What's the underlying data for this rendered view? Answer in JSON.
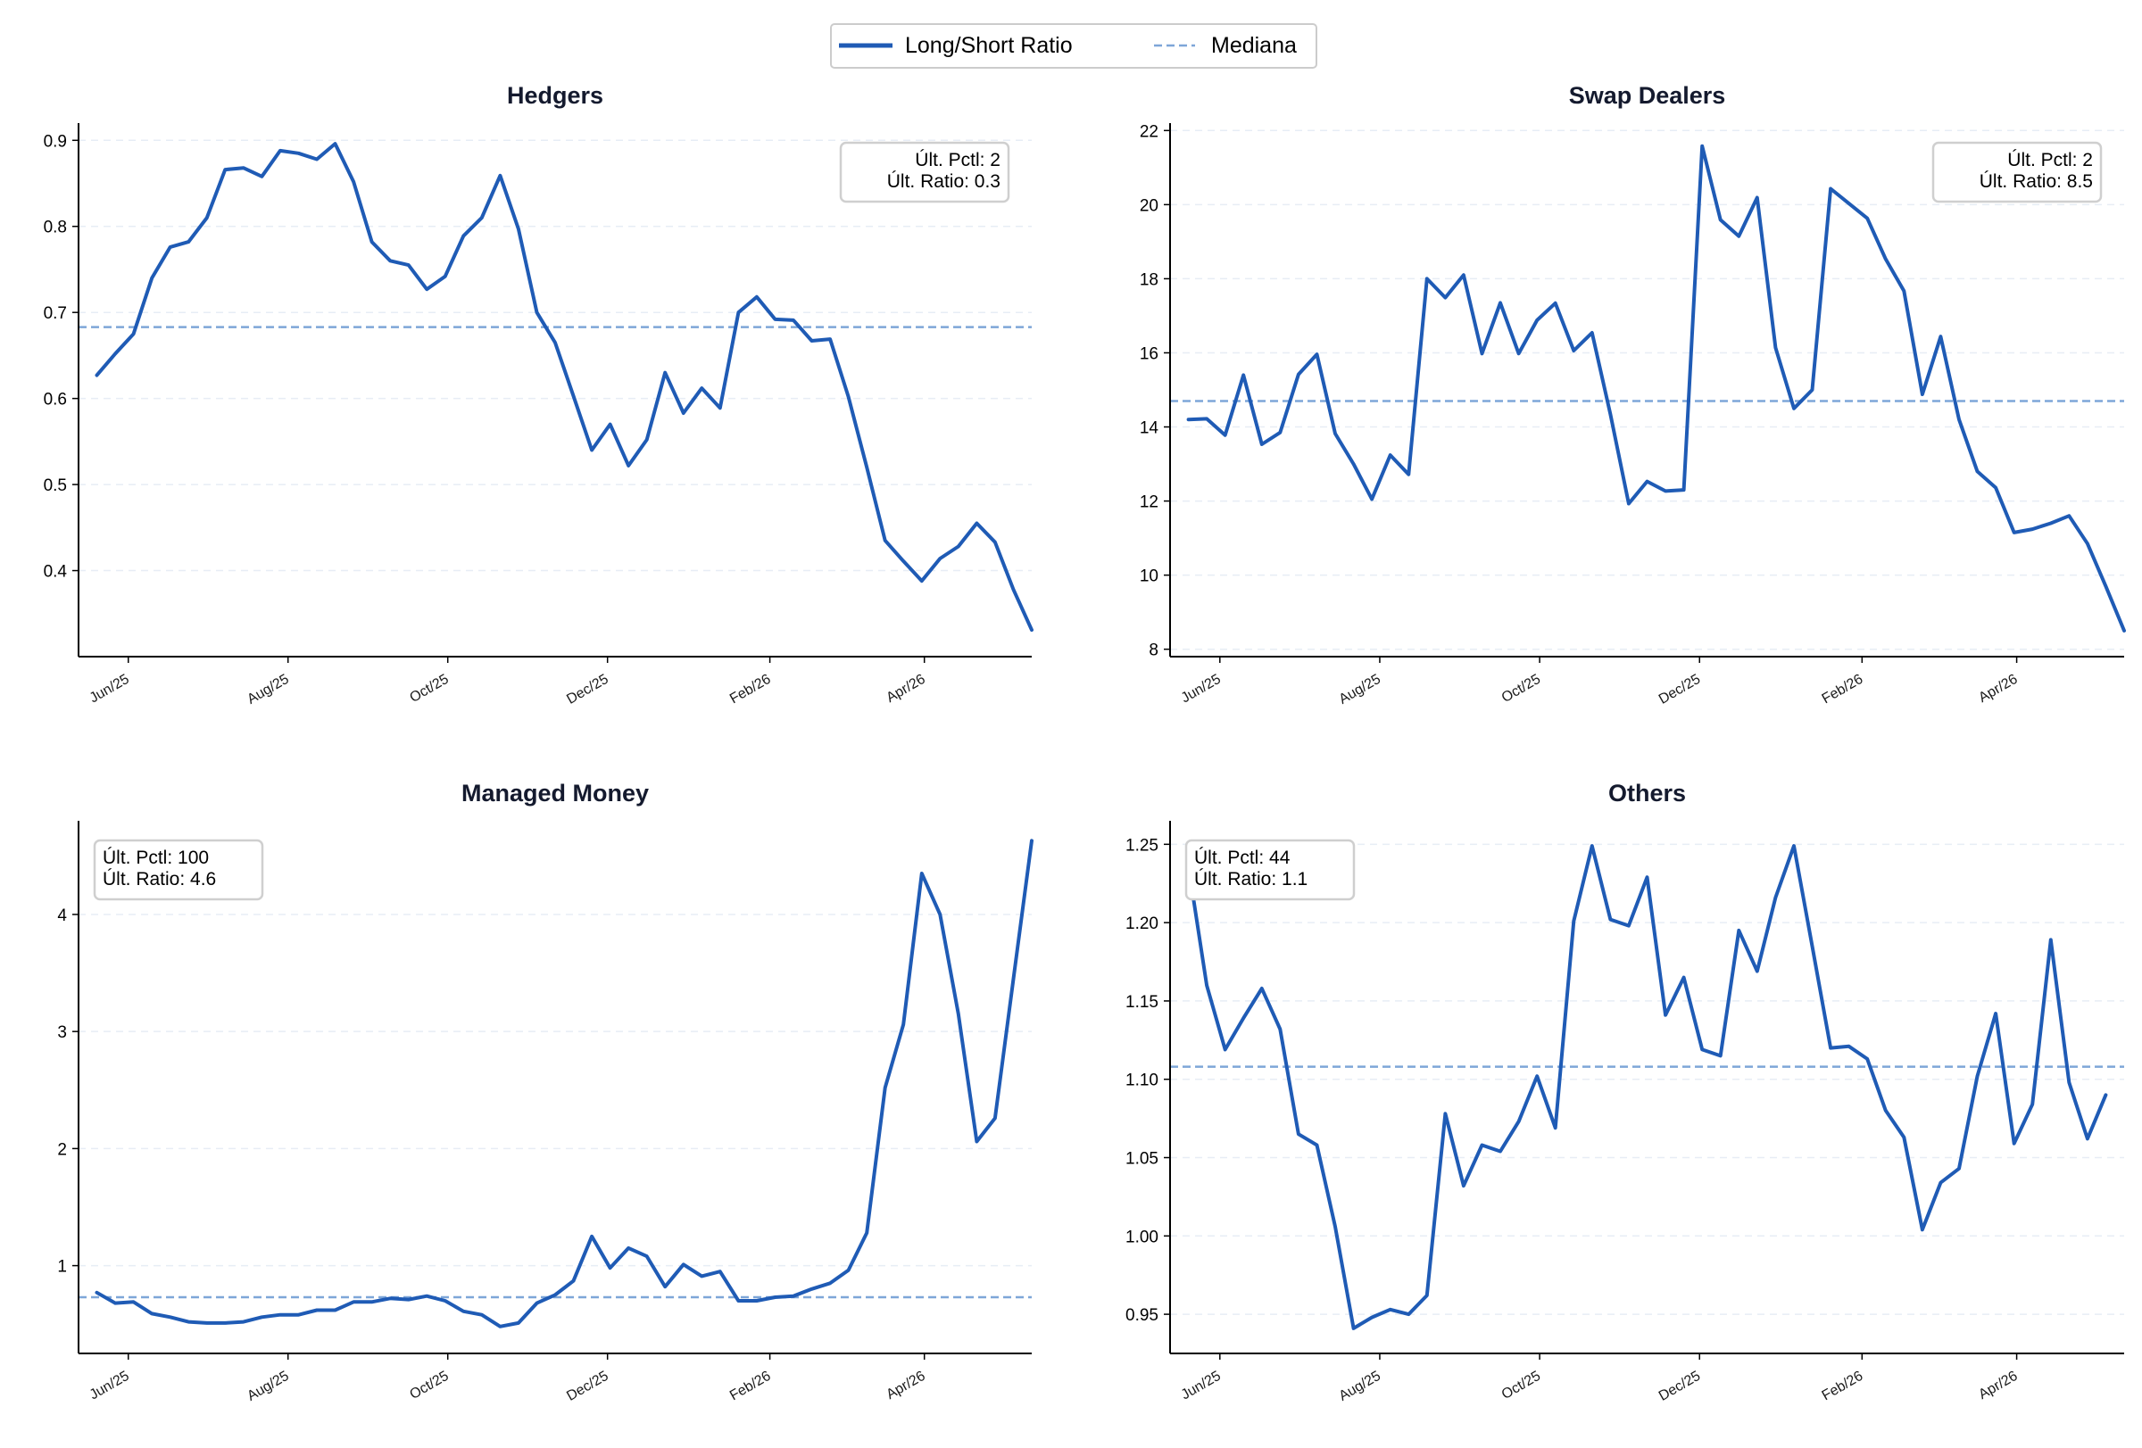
{
  "legend": {
    "ratio_label": "Long/Short Ratio",
    "median_label": "Mediana",
    "colors": {
      "ratio": "#1f5bb5",
      "median": "#7ea6d8"
    }
  },
  "x_ticks": [
    "Jun/25",
    "Aug/25",
    "Oct/25",
    "Dec/25",
    "Feb/26",
    "Apr/26"
  ],
  "chart_data": [
    {
      "type": "line",
      "title": "Hedgers",
      "x_start": "2025-05-20",
      "x_step_days": 7,
      "ylim": [
        0.3,
        0.92
      ],
      "yticks": [
        "0.4",
        "0.5",
        "0.6",
        "0.7",
        "0.8",
        "0.9"
      ],
      "median": 0.683,
      "annotation": {
        "lines": [
          "Últ. Pctl: 2",
          "Últ. Ratio: 0.3"
        ],
        "position": "top-right"
      },
      "series": [
        {
          "name": "Long/Short Ratio",
          "values": [
            0.627,
            0.652,
            0.675,
            0.74,
            0.776,
            0.782,
            0.81,
            0.866,
            0.868,
            0.858,
            0.888,
            0.885,
            0.878,
            0.896,
            0.852,
            0.782,
            0.76,
            0.755,
            0.727,
            0.742,
            0.789,
            0.81,
            0.859,
            0.797,
            0.7,
            0.665,
            0.603,
            0.54,
            0.57,
            0.522,
            0.552,
            0.63,
            0.583,
            0.612,
            0.589,
            0.7,
            0.718,
            0.692,
            0.691,
            0.667,
            0.669,
            0.602,
            0.52,
            0.435,
            0.411,
            0.388,
            0.414,
            0.428,
            0.455,
            0.433,
            0.378,
            0.331
          ]
        }
      ]
    },
    {
      "type": "line",
      "title": "Swap Dealers",
      "x_start": "2025-05-20",
      "x_step_days": 7,
      "ylim": [
        7.8,
        22.2
      ],
      "yticks": [
        "8",
        "10",
        "12",
        "14",
        "16",
        "18",
        "20",
        "22"
      ],
      "median": 14.7,
      "annotation": {
        "lines": [
          "Últ. Pctl: 2",
          "Últ. Ratio: 8.5"
        ],
        "position": "top-right"
      },
      "series": [
        {
          "name": "Long/Short Ratio",
          "values": [
            14.2,
            14.22,
            13.78,
            15.4,
            13.53,
            13.85,
            15.42,
            15.96,
            13.82,
            13.0,
            12.05,
            13.24,
            12.72,
            18.0,
            17.49,
            18.1,
            15.98,
            17.35,
            15.98,
            16.88,
            17.34,
            16.06,
            16.54,
            14.34,
            11.93,
            12.53,
            12.27,
            12.3,
            21.58,
            19.59,
            19.15,
            20.19,
            16.14,
            14.5,
            15.0,
            20.43,
            20.03,
            19.63,
            18.53,
            17.67,
            14.88,
            16.44,
            14.2,
            12.8,
            12.36,
            11.15,
            11.24,
            11.4,
            11.6,
            10.85,
            9.7,
            8.5
          ]
        }
      ]
    },
    {
      "type": "line",
      "title": "Managed Money",
      "x_start": "2025-05-20",
      "x_step_days": 7,
      "ylim": [
        0.25,
        4.8
      ],
      "yticks": [
        "1",
        "2",
        "3",
        "4"
      ],
      "median": 0.73,
      "annotation": {
        "lines": [
          "Últ. Pctl: 100",
          "Últ. Ratio: 4.6"
        ],
        "position": "top-left"
      },
      "series": [
        {
          "name": "Long/Short Ratio",
          "values": [
            0.77,
            0.68,
            0.69,
            0.59,
            0.56,
            0.52,
            0.51,
            0.51,
            0.52,
            0.56,
            0.58,
            0.58,
            0.62,
            0.62,
            0.69,
            0.69,
            0.72,
            0.71,
            0.74,
            0.7,
            0.61,
            0.58,
            0.48,
            0.51,
            0.68,
            0.75,
            0.87,
            1.25,
            0.98,
            1.15,
            1.08,
            0.82,
            1.01,
            0.91,
            0.95,
            0.7,
            0.7,
            0.73,
            0.74,
            0.8,
            0.85,
            0.96,
            1.28,
            2.52,
            3.06,
            4.35,
            4.0,
            3.15,
            2.06,
            2.26,
            3.45,
            4.63
          ]
        }
      ]
    },
    {
      "type": "line",
      "title": "Others",
      "x_start": "2025-05-20",
      "x_step_days": 7,
      "ylim": [
        0.925,
        1.265
      ],
      "yticks": [
        "0.95",
        "1.00",
        "1.05",
        "1.10",
        "1.15",
        "1.20",
        "1.25"
      ],
      "median": 1.108,
      "annotation": {
        "lines": [
          "Últ. Pctl: 44",
          "Últ. Ratio: 1.1"
        ],
        "position": "top-left"
      },
      "series": [
        {
          "name": "Long/Short Ratio",
          "values": [
            1.236,
            1.16,
            1.119,
            1.139,
            1.158,
            1.132,
            1.065,
            1.058,
            1.006,
            0.941,
            0.948,
            0.953,
            0.95,
            0.962,
            1.078,
            1.032,
            1.058,
            1.054,
            1.073,
            1.102,
            1.069,
            1.201,
            1.249,
            1.202,
            1.198,
            1.229,
            1.141,
            1.165,
            1.119,
            1.115,
            1.195,
            1.169,
            1.216,
            1.249,
            1.185,
            1.12,
            1.121,
            1.113,
            1.08,
            1.063,
            1.004,
            1.034,
            1.043,
            1.102,
            1.142,
            1.059,
            1.084,
            1.189,
            1.098,
            1.062,
            1.09
          ]
        }
      ]
    }
  ]
}
